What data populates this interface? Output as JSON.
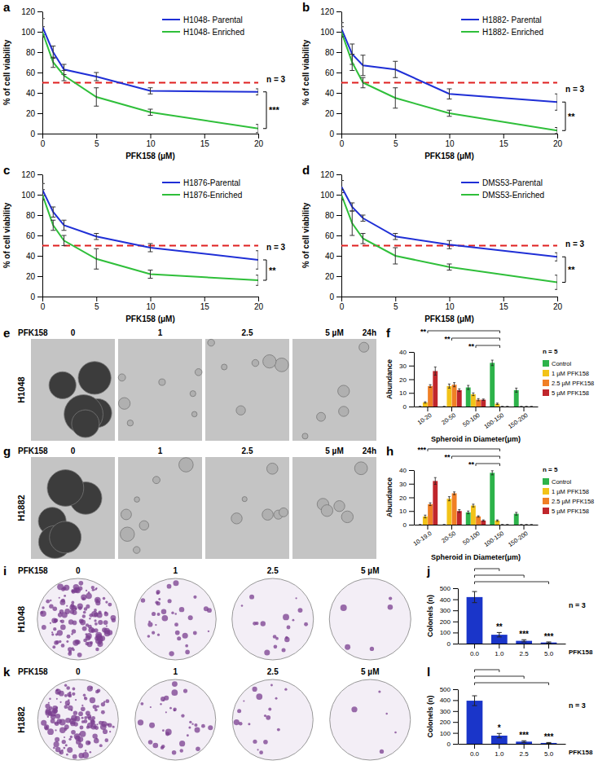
{
  "chart_data": [
    {
      "panel": "a",
      "type": "line",
      "x": [
        0,
        1,
        2,
        5,
        10,
        20
      ],
      "xlim": [
        0,
        20
      ],
      "xticks": [
        0,
        5,
        10,
        15,
        20
      ],
      "ylim": [
        0,
        120
      ],
      "yticks": [
        0,
        20,
        40,
        60,
        80,
        100,
        120
      ],
      "x_label": "PFK158 (μM)",
      "y_label": "% of cell viability",
      "threshold": 50,
      "n_label": "n = 3",
      "significance": "***",
      "legend": "top-right",
      "series": [
        {
          "name": "H1048- Parental",
          "color": "#1f2fd6",
          "values": [
            105,
            80,
            63,
            56,
            42,
            41
          ],
          "errors": [
            8,
            6,
            5,
            4,
            3,
            3
          ]
        },
        {
          "name": "H1048- Enriched",
          "color": "#2fbf3a",
          "values": [
            100,
            70,
            57,
            36,
            21,
            5
          ],
          "errors": [
            5,
            5,
            5,
            9,
            3,
            4
          ]
        }
      ]
    },
    {
      "panel": "b",
      "type": "line",
      "x": [
        0,
        1,
        2,
        5,
        10,
        20
      ],
      "xlim": [
        0,
        20
      ],
      "xticks": [
        0,
        5,
        10,
        15,
        20
      ],
      "ylim": [
        0,
        120
      ],
      "yticks": [
        0,
        20,
        40,
        60,
        80,
        100,
        120
      ],
      "x_label": "PFK158 (μM)",
      "y_label": "% of cell viability",
      "threshold": 50,
      "n_label": "n = 3",
      "significance": "**",
      "legend": "top-right",
      "series": [
        {
          "name": "H1882- Parental",
          "color": "#1f2fd6",
          "values": [
            103,
            78,
            67,
            63,
            39,
            31
          ],
          "errors": [
            6,
            10,
            10,
            8,
            5,
            8
          ]
        },
        {
          "name": "H1882- Enriched",
          "color": "#2fbf3a",
          "values": [
            100,
            70,
            50,
            35,
            20,
            3
          ],
          "errors": [
            5,
            8,
            5,
            10,
            3,
            3
          ]
        }
      ]
    },
    {
      "panel": "c",
      "type": "line",
      "x": [
        0,
        1,
        2,
        5,
        10,
        20
      ],
      "xlim": [
        0,
        20
      ],
      "xticks": [
        0,
        5,
        10,
        15,
        20
      ],
      "ylim": [
        0,
        120
      ],
      "yticks": [
        0,
        20,
        40,
        60,
        80,
        100,
        120
      ],
      "x_label": "PFK158 (μM)",
      "y_label": "% of cell viability",
      "threshold": 50,
      "n_label": "n = 3",
      "significance": "**",
      "legend": "top-right",
      "series": [
        {
          "name": "H1876-Parental",
          "color": "#1f2fd6",
          "values": [
            105,
            83,
            70,
            59,
            48,
            36
          ],
          "errors": [
            6,
            5,
            5,
            3,
            4,
            9
          ]
        },
        {
          "name": "H1876-Enriched",
          "color": "#2fbf3a",
          "values": [
            100,
            70,
            55,
            37,
            22,
            16
          ],
          "errors": [
            5,
            5,
            5,
            10,
            4,
            5
          ]
        }
      ]
    },
    {
      "panel": "d",
      "type": "line",
      "x": [
        0,
        1,
        2,
        5,
        10,
        20
      ],
      "xlim": [
        0,
        20
      ],
      "xticks": [
        0,
        5,
        10,
        15,
        20
      ],
      "ylim": [
        0,
        120
      ],
      "yticks": [
        0,
        20,
        40,
        60,
        80,
        100,
        120
      ],
      "x_label": "PFK158 (μM)",
      "y_label": "% of cell viability",
      "threshold": 50,
      "n_label": "n = 3",
      "significance": "**",
      "legend": "top-right",
      "series": [
        {
          "name": "DMS53-Parental",
          "color": "#1f2fd6",
          "values": [
            108,
            88,
            77,
            59,
            51,
            39
          ],
          "errors": [
            6,
            4,
            3,
            3,
            4,
            4
          ]
        },
        {
          "name": "DMS53-Enriched",
          "color": "#2fbf3a",
          "values": [
            100,
            72,
            57,
            40,
            29,
            14
          ],
          "errors": [
            5,
            12,
            5,
            8,
            3,
            7
          ]
        }
      ]
    },
    {
      "panel": "f",
      "type": "bar",
      "categories": [
        "10-20",
        "20-50",
        "50-100",
        "100-150",
        "150-200"
      ],
      "ylim": [
        0,
        40
      ],
      "yticks": [
        0,
        10,
        20,
        30,
        40
      ],
      "x_label": "Spheroid in Diameter(μm)",
      "y_label": "Abundance",
      "n_label": "n = 5",
      "legend": "right",
      "series": [
        {
          "name": "Control",
          "color": "#2db34a",
          "values": [
            0,
            0,
            14,
            32,
            12
          ],
          "errors": [
            0,
            0,
            1.5,
            2,
            1.5
          ]
        },
        {
          "name": "1 µM PFK158",
          "color": "#f2c318",
          "values": [
            3,
            15,
            9,
            2,
            0
          ],
          "errors": [
            0.5,
            1.5,
            1,
            0.5,
            0
          ]
        },
        {
          "name": "2.5 µM PFK158",
          "color": "#f07f25",
          "values": [
            15,
            16,
            5,
            0,
            0
          ],
          "errors": [
            1,
            1.5,
            0.8,
            0,
            0
          ]
        },
        {
          "name": "5 µM PFK158",
          "color": "#c0262c",
          "values": [
            26,
            12,
            5,
            0,
            0
          ],
          "errors": [
            3,
            1,
            0.5,
            0,
            0
          ]
        }
      ],
      "annotations": [
        {
          "text": "**",
          "category": "10-20",
          "reference": "100-150"
        },
        {
          "text": "**",
          "category": "20-50",
          "reference": "100-150"
        },
        {
          "text": "**",
          "category": "50-100",
          "reference": "100-150"
        }
      ]
    },
    {
      "panel": "h",
      "type": "bar",
      "categories": [
        "10-19.0",
        "20-50",
        "50-100",
        "100-150",
        "150-200"
      ],
      "ylim": [
        0,
        40
      ],
      "yticks": [
        0,
        10,
        20,
        30,
        40
      ],
      "x_label": "Spheroid in Diameter(μm)",
      "y_label": "Abundance",
      "n_label": "n = 5",
      "legend": "right",
      "series": [
        {
          "name": "Control",
          "color": "#2db34a",
          "values": [
            0,
            0,
            9,
            38,
            8
          ],
          "errors": [
            0,
            0,
            1,
            1.5,
            1
          ]
        },
        {
          "name": "1 µM PFK158",
          "color": "#f2c318",
          "values": [
            6,
            19,
            14,
            3,
            0
          ],
          "errors": [
            1,
            1.5,
            1,
            0.5,
            0
          ]
        },
        {
          "name": "2.5 µM PFK158",
          "color": "#f07f25",
          "values": [
            15,
            23,
            6,
            0,
            0
          ],
          "errors": [
            1,
            1,
            0.5,
            0,
            0
          ]
        },
        {
          "name": "5 µM PFK158",
          "color": "#c0262c",
          "values": [
            32,
            10,
            3,
            0,
            0
          ],
          "errors": [
            2.5,
            1,
            0.5,
            0,
            0
          ]
        }
      ],
      "annotations": [
        {
          "text": "***",
          "category": "10-19.0",
          "reference": "100-150"
        },
        {
          "text": "**",
          "category": "20-50",
          "reference": "100-150"
        },
        {
          "text": "**",
          "category": "50-100",
          "reference": "100-150"
        }
      ]
    },
    {
      "panel": "j",
      "type": "bar",
      "categories": [
        "0.0",
        "1.0",
        "2.5",
        "5.0"
      ],
      "values": [
        420,
        80,
        25,
        10
      ],
      "errors": [
        50,
        20,
        10,
        5
      ],
      "color": "#1a35c9",
      "ylim": [
        0,
        500
      ],
      "yticks": [
        0,
        100,
        200,
        300,
        400,
        500
      ],
      "x_label": "PFK158",
      "y_label": "Colonels (n)",
      "n_label": "n = 3",
      "annotations": [
        {
          "text": "**",
          "category": "1.0",
          "reference": "0.0"
        },
        {
          "text": "***",
          "category": "2.5",
          "reference": "0.0"
        },
        {
          "text": "***",
          "category": "5.0",
          "reference": "0.0"
        }
      ]
    },
    {
      "panel": "l",
      "type": "bar",
      "categories": [
        "0.0",
        "1.0",
        "2.5",
        "5.0"
      ],
      "values": [
        395,
        75,
        20,
        8
      ],
      "errors": [
        45,
        20,
        8,
        4
      ],
      "color": "#1a35c9",
      "ylim": [
        0,
        500
      ],
      "yticks": [
        0,
        100,
        200,
        300,
        400,
        500
      ],
      "x_label": "PFK158",
      "y_label": "Colonels (n)",
      "n_label": "n = 3",
      "annotations": [
        {
          "text": "*",
          "category": "1.0",
          "reference": "0.0"
        },
        {
          "text": "***",
          "category": "2.5",
          "reference": "0.0"
        },
        {
          "text": "***",
          "category": "5.0",
          "reference": "0.0"
        }
      ]
    }
  ],
  "images": [
    {
      "panel": "e",
      "kind": "spheroid",
      "cell_line": "H1048",
      "label": "PFK158",
      "doses": [
        "0",
        "1",
        "2.5",
        "5 µM"
      ],
      "time": "24h"
    },
    {
      "panel": "g",
      "kind": "spheroid",
      "cell_line": "H1882",
      "label": "PFK158",
      "doses": [
        "0",
        "1",
        "2.5",
        "5 µM"
      ],
      "time": "24h"
    },
    {
      "panel": "i",
      "kind": "colony",
      "cell_line": "H1048",
      "label": "PFK158",
      "doses": [
        "0",
        "1",
        "2.5",
        "5 µM"
      ]
    },
    {
      "panel": "k",
      "kind": "colony",
      "cell_line": "H1882",
      "label": "PFK158",
      "doses": [
        "0",
        "1",
        "2.5",
        "5 µM"
      ]
    }
  ]
}
